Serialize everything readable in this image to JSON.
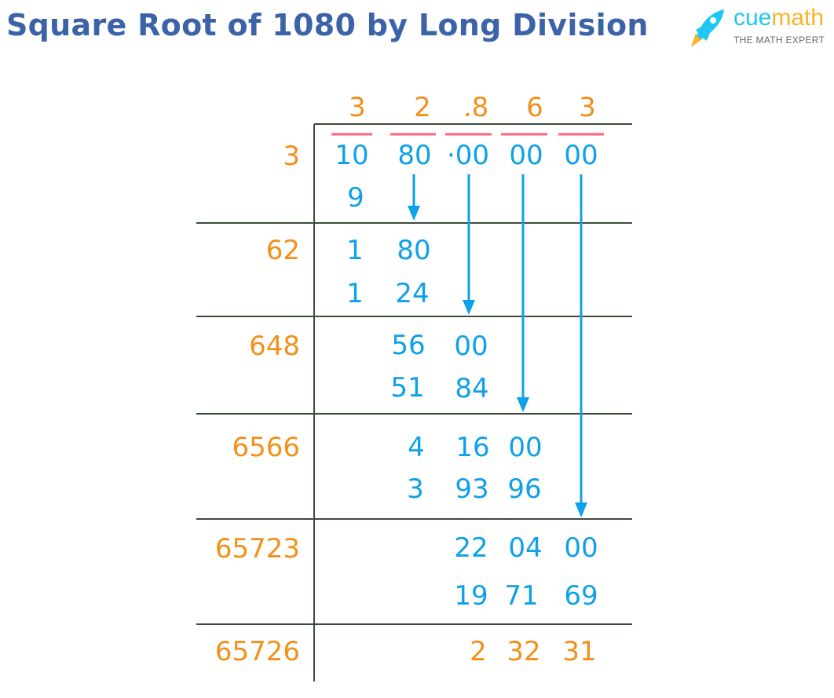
{
  "title": "Square Root of 1080 by Long Division",
  "logo": {
    "brand_part1": "cue",
    "brand_part2": "math",
    "tagline": "THE MATH EXPERT"
  },
  "colors": {
    "title": "#3c63a8",
    "digits": "#0ea0e8",
    "quotient": "#f39019",
    "overbar": "#ff6379",
    "lines": "#3b4a3b"
  },
  "quotient": [
    "3",
    "2",
    ".8",
    "6",
    "3"
  ],
  "dividend_pairs": [
    "10",
    "80",
    "·00",
    "00",
    "00"
  ],
  "divisors": [
    "3",
    "62",
    "648",
    "6566",
    "65723",
    "65726"
  ],
  "steps": [
    {
      "subtract": [
        "9"
      ]
    },
    {
      "remainder": [
        "1",
        "80"
      ],
      "subtract": [
        "1",
        "24"
      ]
    },
    {
      "remainder": [
        "56",
        "00"
      ],
      "subtract": [
        "51",
        "84"
      ]
    },
    {
      "remainder": [
        "4",
        "16",
        "00"
      ],
      "subtract": [
        "3",
        "93",
        "96"
      ]
    },
    {
      "remainder": [
        "22",
        "04",
        "00"
      ],
      "subtract": [
        "19",
        "71",
        "69"
      ]
    }
  ],
  "final_remainder": [
    "2",
    "32",
    "31"
  ]
}
